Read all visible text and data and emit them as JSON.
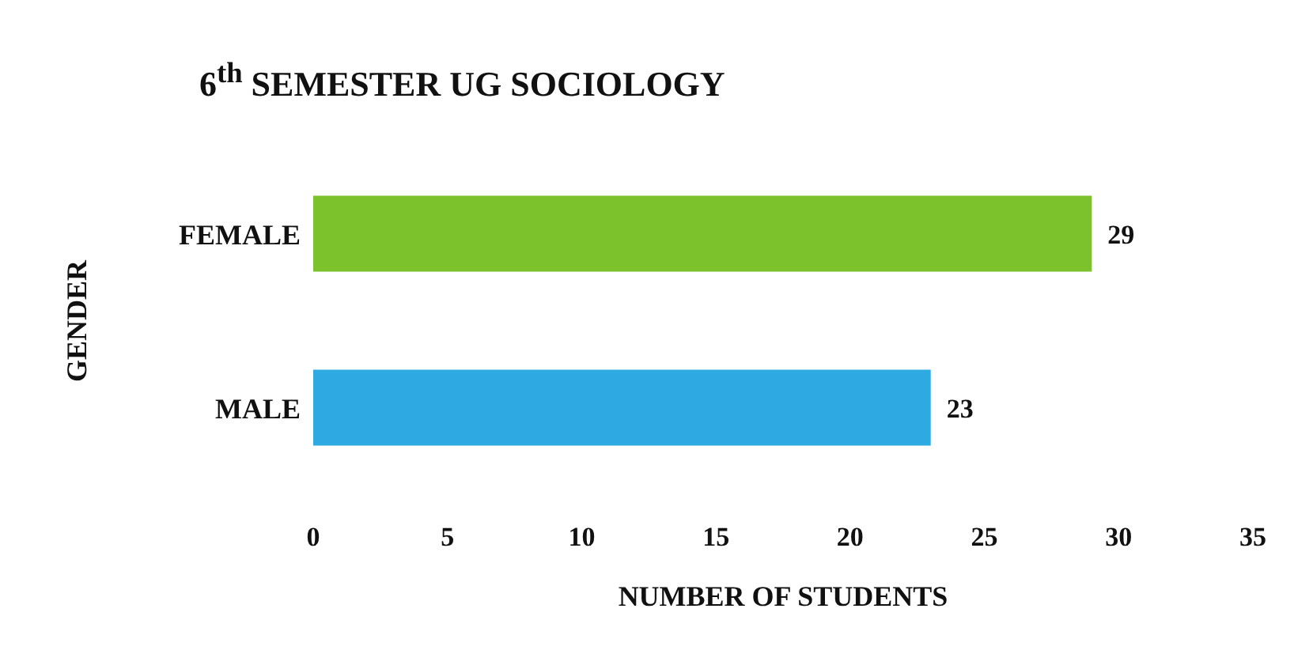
{
  "chart_data": {
    "type": "bar",
    "orientation": "horizontal",
    "title": "6$^{th}$ SEMESTER UG SOCIOLOGY",
    "xlabel": "NUMBER OF STUDENTS",
    "ylabel": "GENDER",
    "categories": [
      "FEMALE",
      "MALE"
    ],
    "values": [
      29,
      23
    ],
    "colors": [
      "#7cc22c",
      "#2fa9e1"
    ],
    "xlim": [
      0,
      35
    ],
    "xticks": [
      0,
      5,
      10,
      15,
      20,
      25,
      30,
      35
    ],
    "data_labels": true,
    "grid": false,
    "legend": false
  }
}
